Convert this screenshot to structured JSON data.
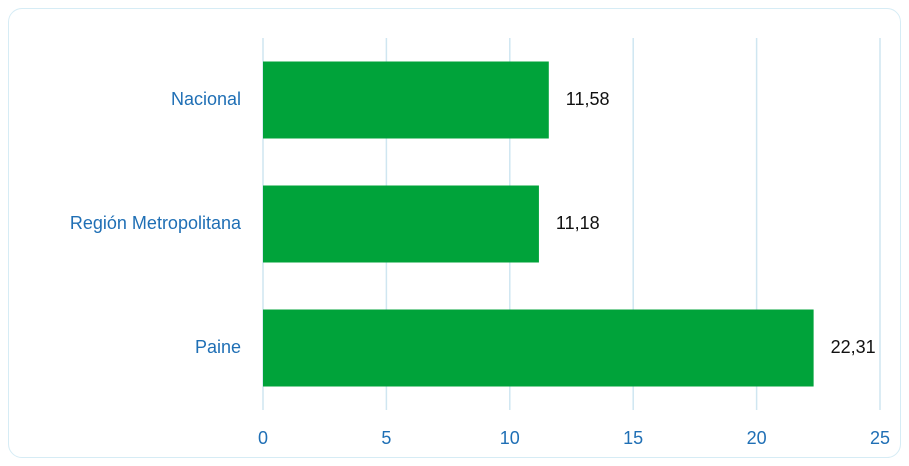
{
  "chart_data": {
    "type": "bar",
    "orientation": "horizontal",
    "categories": [
      "Nacional",
      "Región Metropolitana",
      "Paine"
    ],
    "values": [
      11.58,
      11.18,
      22.31
    ],
    "value_labels": [
      "11,58",
      "11,18",
      "22,31"
    ],
    "xlim": [
      0,
      25
    ],
    "xticks": [
      0,
      5,
      10,
      15,
      20,
      25
    ],
    "xtick_labels": [
      "0",
      "5",
      "10",
      "15",
      "20",
      "25"
    ],
    "grid": "vertical",
    "legend": "none"
  },
  "colors": {
    "bar": "#00a33a",
    "label_text": "#1f6fb5",
    "value_text": "#111111",
    "grid": "#cfe6f1",
    "frame": "#d6ecf5"
  }
}
